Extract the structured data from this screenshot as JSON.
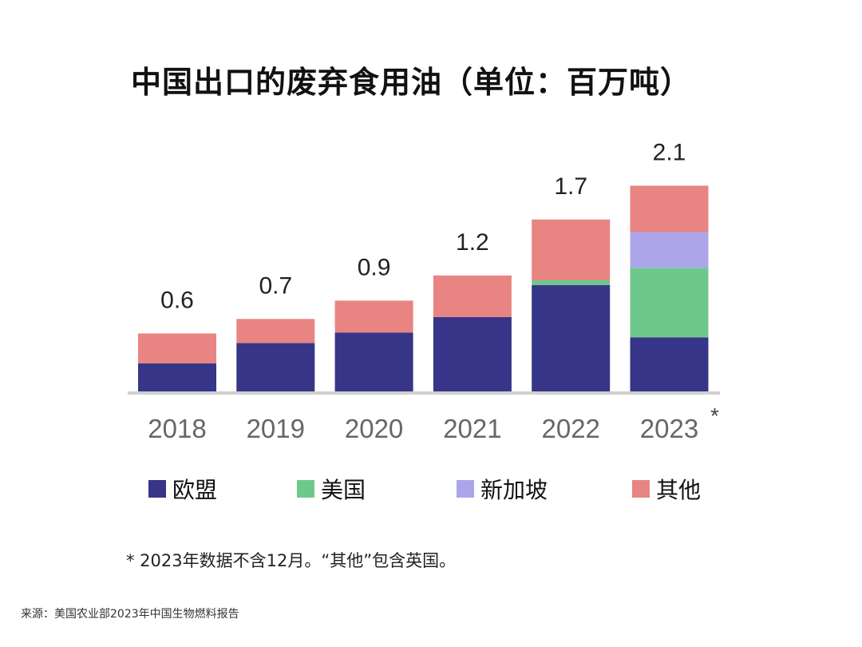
{
  "chart_data": {
    "type": "bar",
    "stacked": true,
    "title": "中国出口的废弃食用油（单位：百万吨）",
    "categories": [
      "2018",
      "2019",
      "2020",
      "2021",
      "2022",
      "2023"
    ],
    "category_marks": [
      "",
      "",
      "",
      "",
      "",
      "*"
    ],
    "totals": [
      "0.6",
      "0.7",
      "0.9",
      "1.2",
      "1.7",
      "2.1"
    ],
    "series": [
      {
        "name": "欧盟",
        "color": "#373587",
        "values": [
          0.29,
          0.5,
          0.61,
          0.77,
          1.1,
          0.56
        ]
      },
      {
        "name": "美国",
        "color": "#6DC98B",
        "values": [
          0,
          0,
          0,
          0,
          0.05,
          0.72
        ]
      },
      {
        "name": "新加坡",
        "color": "#ADA5EA",
        "values": [
          0,
          0,
          0,
          0,
          0,
          0.37
        ]
      },
      {
        "name": "其他",
        "color": "#E88482",
        "values": [
          0.31,
          0.25,
          0.33,
          0.43,
          0.63,
          0.48
        ]
      }
    ],
    "ylim": [
      0,
      2.2
    ],
    "grid": false,
    "legend_position": "bottom"
  },
  "footnote": "* 2023年数据不含12月。“其他”包含英国。",
  "source": "来源：美国农业部2023年中国生物燃料报告"
}
